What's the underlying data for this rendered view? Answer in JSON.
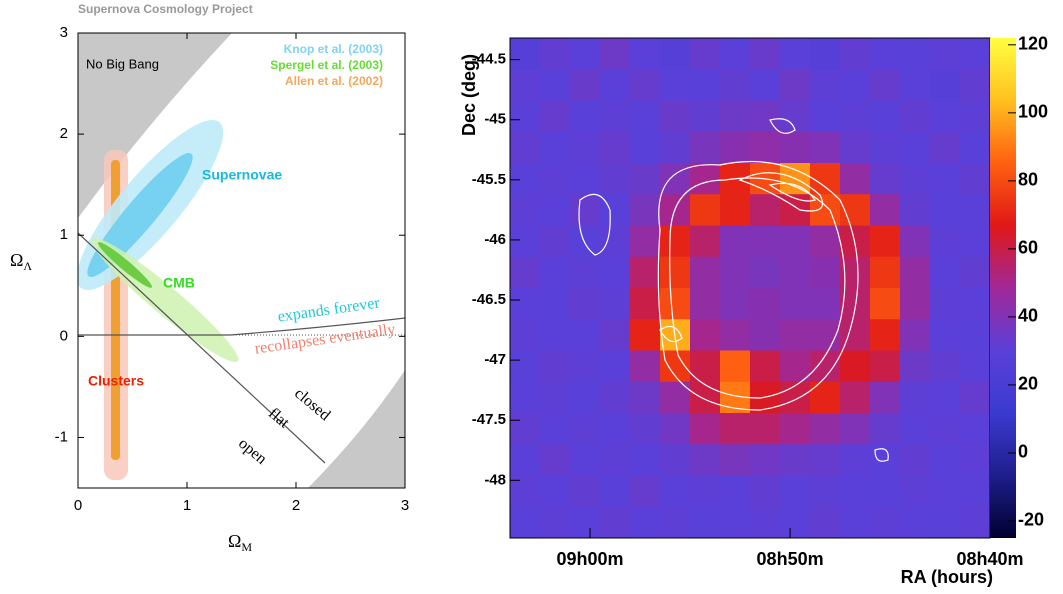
{
  "chart_data": [
    {
      "type": "region",
      "title": "Supernova Cosmology Project",
      "x_label": "Ω",
      "x_label_sub": "M",
      "y_label": "Ω",
      "y_label_sub": "Λ",
      "xlim": [
        0,
        3
      ],
      "ylim": [
        -1.5,
        3
      ],
      "xticks": [
        0,
        1,
        2,
        3
      ],
      "yticks": [
        -1,
        0,
        1,
        2,
        3
      ],
      "legend": [
        {
          "name": "Knop et al. (2003)",
          "color": "#7fd3f0"
        },
        {
          "name": "Spergel et al. (2003)",
          "color": "#66dd33"
        },
        {
          "name": "Allen et al. (2002)",
          "color": "#f0a860"
        }
      ],
      "annotations": [
        "No Big Bang",
        "Supernovae",
        "CMB",
        "Clusters",
        "expands forever",
        "recollapses eventually",
        "closed",
        "flat",
        "open"
      ]
    },
    {
      "type": "heatmap",
      "x_label": "RA (hours)",
      "y_label": "Dec (deg)",
      "xlim": [
        9.0667,
        8.6667
      ],
      "ylim": [
        -48.48,
        -44.32
      ],
      "zlim": [
        -25,
        122
      ],
      "xticks": [
        {
          "value": 9.0,
          "label": "09h00m"
        },
        {
          "value": 8.8333,
          "label": "08h50m"
        },
        {
          "value": 8.6667,
          "label": "08h40m"
        }
      ],
      "yticks": [
        -44.5,
        -45,
        -45.5,
        -46,
        -46.5,
        -47,
        -47.5,
        -48
      ],
      "zticks": [
        -20,
        0,
        20,
        40,
        60,
        80,
        100,
        120
      ],
      "colorscale": [
        "#000030",
        "#1e1e8c",
        "#3a3ad0",
        "#5a40d8",
        "#a02898",
        "#e01818",
        "#ff6010",
        "#ffc020",
        "#ffff40"
      ],
      "z": [
        [
          28,
          32,
          30,
          35,
          30,
          28,
          33,
          30,
          34,
          30,
          28,
          32,
          30,
          29,
          31,
          30
        ],
        [
          31,
          29,
          34,
          30,
          33,
          30,
          29,
          32,
          30,
          35,
          31,
          30,
          33,
          30,
          28,
          32
        ],
        [
          30,
          33,
          29,
          31,
          30,
          34,
          32,
          35,
          36,
          33,
          30,
          31,
          29,
          32,
          30,
          31
        ],
        [
          32,
          30,
          31,
          33,
          29,
          32,
          38,
          42,
          44,
          42,
          40,
          33,
          31,
          30,
          33,
          29
        ],
        [
          29,
          31,
          30,
          32,
          34,
          40,
          50,
          70,
          80,
          95,
          75,
          45,
          33,
          31,
          30,
          32
        ],
        [
          31,
          30,
          33,
          29,
          38,
          50,
          75,
          70,
          55,
          60,
          80,
          75,
          45,
          32,
          29,
          30
        ],
        [
          30,
          32,
          29,
          31,
          45,
          70,
          55,
          40,
          40,
          40,
          45,
          60,
          70,
          40,
          31,
          30
        ],
        [
          33,
          30,
          31,
          30,
          55,
          75,
          45,
          40,
          38,
          40,
          42,
          55,
          75,
          45,
          30,
          32
        ],
        [
          30,
          29,
          32,
          31,
          60,
          80,
          45,
          40,
          42,
          40,
          40,
          55,
          80,
          45,
          31,
          30
        ],
        [
          31,
          30,
          30,
          33,
          70,
          100,
          50,
          45,
          42,
          45,
          45,
          55,
          70,
          40,
          30,
          29
        ],
        [
          29,
          32,
          31,
          30,
          45,
          75,
          60,
          85,
          60,
          50,
          55,
          65,
          60,
          35,
          32,
          30
        ],
        [
          30,
          31,
          29,
          32,
          35,
          45,
          60,
          90,
          65,
          60,
          70,
          55,
          40,
          31,
          30,
          33
        ],
        [
          32,
          30,
          31,
          30,
          32,
          36,
          50,
          55,
          55,
          50,
          45,
          40,
          33,
          30,
          31,
          30
        ],
        [
          30,
          33,
          30,
          31,
          30,
          32,
          35,
          38,
          36,
          34,
          33,
          31,
          30,
          32,
          29,
          31
        ],
        [
          31,
          30,
          32,
          29,
          33,
          30,
          31,
          30,
          32,
          30,
          31,
          30,
          29,
          31,
          30,
          30
        ],
        [
          29,
          31,
          30,
          32,
          30,
          31,
          29,
          30,
          31,
          30,
          32,
          30,
          31,
          30,
          29,
          31
        ]
      ]
    }
  ]
}
